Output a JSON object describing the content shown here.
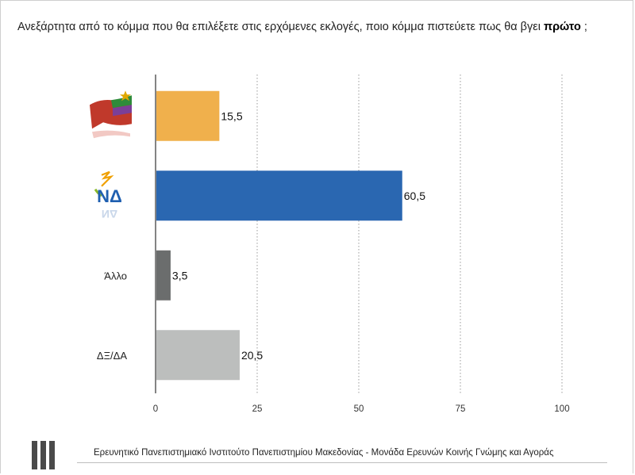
{
  "question": {
    "text": "Ανεξάρτητα από το κόμμα που θα επιλέξετε στις ερχόμενες εκλογές, ποιο κόμμα πιστεύετε πως θα βγει ",
    "emphasis": "πρώτο",
    "suffix": " ;"
  },
  "footer": {
    "text": "Ερευνητικό Πανεπιστημιακό Ινστιτούτο Πανεπιστημίου Μακεδονίας - Μονάδα Ερευνών Κοινής Γνώμης και Αγοράς"
  },
  "logos": {
    "syriza": "syriza-logo",
    "nd": "ND",
    "nd_reflection": "ΝΔ"
  },
  "chart_data": {
    "type": "bar",
    "orientation": "horizontal",
    "categories": [
      "ΣΥΡΙΖΑ",
      "ΝΔ",
      "Άλλο",
      "ΔΞ/ΔΑ"
    ],
    "category_display": [
      "logo",
      "logo",
      "text",
      "text"
    ],
    "values": [
      15.5,
      60.5,
      3.5,
      20.5
    ],
    "value_labels": [
      "15,5",
      "60,5",
      "3,5",
      "20,5"
    ],
    "colors": [
      "#f0b04c",
      "#2a67b1",
      "#6b6d6d",
      "#bcbebd"
    ],
    "xlim": [
      0,
      100
    ],
    "xticks": [
      0,
      25,
      50,
      75,
      100
    ],
    "xtick_labels": [
      "0",
      "25",
      "50",
      "75",
      "100"
    ],
    "grid": "vertical-dotted",
    "title": "",
    "xlabel": "",
    "ylabel": ""
  }
}
